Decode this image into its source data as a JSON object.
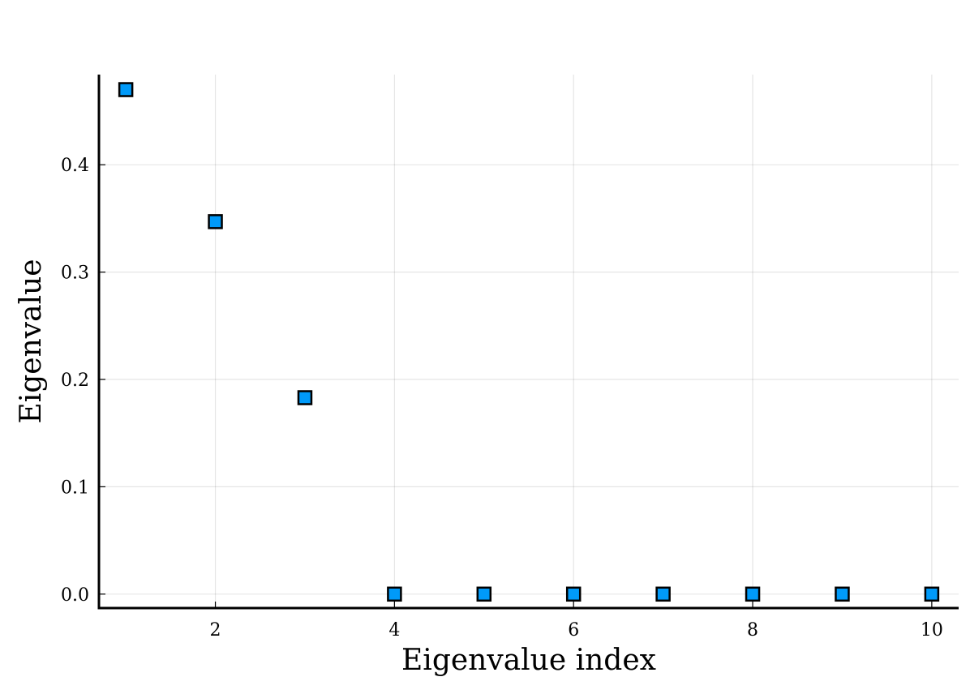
{
  "chart_data": {
    "type": "scatter",
    "xlabel": "Eigenvalue index",
    "ylabel": "Eigenvalue",
    "x_ticks": [
      2,
      4,
      6,
      8,
      10
    ],
    "x_tick_labels": [
      "2",
      "4",
      "6",
      "8",
      "10"
    ],
    "y_ticks": [
      0.0,
      0.1,
      0.2,
      0.3,
      0.4
    ],
    "y_tick_labels": [
      "0.0",
      "0.1",
      "0.2",
      "0.3",
      "0.4"
    ],
    "xlim": [
      0.7,
      10.3
    ],
    "ylim": [
      -0.013,
      0.484
    ],
    "grid": true,
    "legend": "none",
    "marker": "square",
    "series": [
      {
        "x": [
          1,
          2,
          3,
          4,
          5,
          6,
          7,
          8,
          9,
          10
        ],
        "y": [
          0.47,
          0.347,
          0.183,
          0.0,
          0.0,
          0.0,
          0.0,
          0.0,
          0.0,
          0.0
        ],
        "color": "#009af9"
      }
    ]
  }
}
